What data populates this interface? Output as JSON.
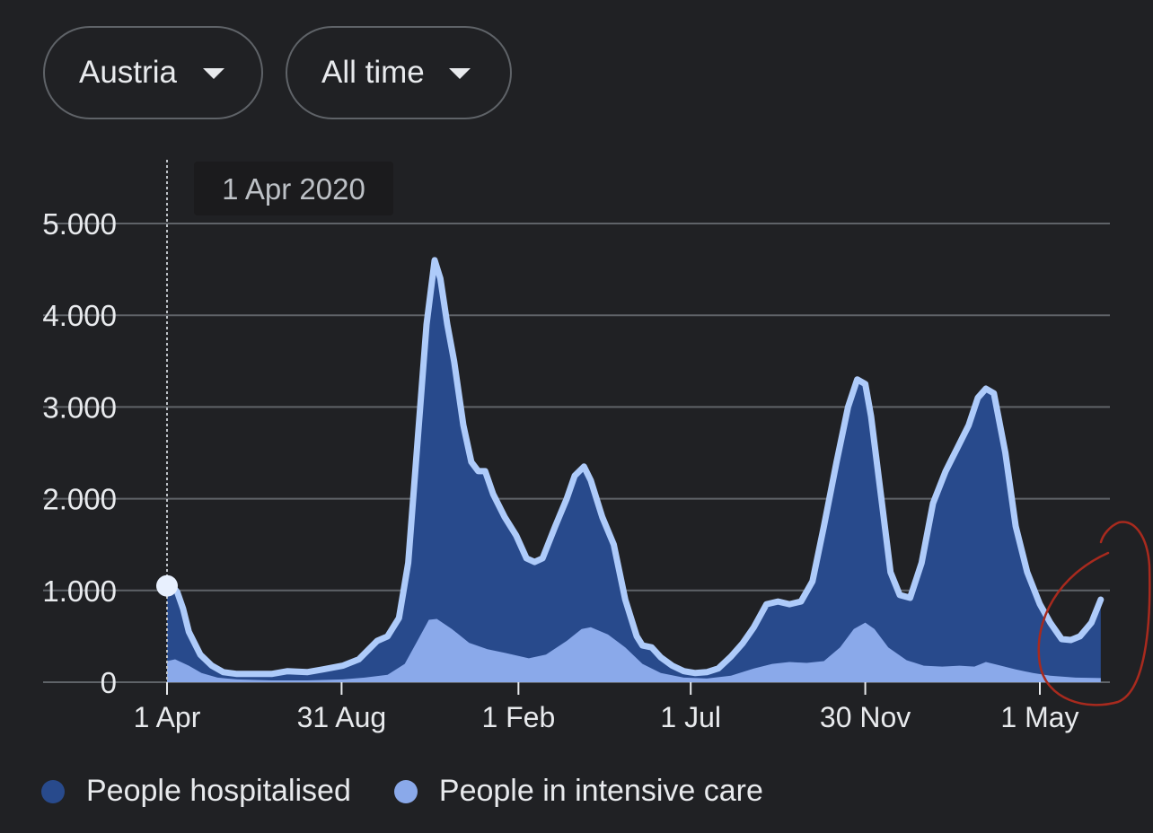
{
  "filters": {
    "region": {
      "label": "Austria"
    },
    "time_range": {
      "label": "All time"
    }
  },
  "tooltip": {
    "date": "1 Apr 2020"
  },
  "legend": [
    {
      "label": "People hospitalised",
      "color": "#284a8c"
    },
    {
      "label": "People in intensive care",
      "color": "#8aa9ea"
    }
  ],
  "colors": {
    "background": "#202124",
    "hospitalised_fill": "#284a8c",
    "hospitalised_line": "#aecbfa",
    "icu_fill": "#8aa9ea",
    "grid": "#5f6368",
    "annotation": "#a82a1e"
  },
  "chart_data": {
    "type": "area",
    "ylim": [
      0,
      5000
    ],
    "y_ticks": [
      0,
      1000,
      2000,
      3000,
      4000,
      5000
    ],
    "y_tick_labels": [
      "0",
      "1.000",
      "2.000",
      "3.000",
      "4.000",
      "5.000"
    ],
    "x_ticks": [
      {
        "date": "2020-04-01",
        "label": "1 Apr"
      },
      {
        "date": "2020-08-31",
        "label": "31 Aug"
      },
      {
        "date": "2021-02-01",
        "label": "1 Feb"
      },
      {
        "date": "2021-07-01",
        "label": "1 Jul"
      },
      {
        "date": "2021-11-30",
        "label": "30 Nov"
      },
      {
        "date": "2022-05-01",
        "label": "1 May"
      }
    ],
    "xlim": [
      "2020-04-01",
      "2022-07-01"
    ],
    "highlighted_date": "2020-04-01",
    "series": [
      {
        "name": "People hospitalised",
        "points": [
          [
            "2020-04-01",
            1050
          ],
          [
            "2020-04-05",
            1060
          ],
          [
            "2020-04-10",
            980
          ],
          [
            "2020-04-15",
            800
          ],
          [
            "2020-04-20",
            550
          ],
          [
            "2020-04-30",
            300
          ],
          [
            "2020-05-10",
            180
          ],
          [
            "2020-05-20",
            110
          ],
          [
            "2020-06-01",
            90
          ],
          [
            "2020-06-15",
            90
          ],
          [
            "2020-07-01",
            90
          ],
          [
            "2020-07-15",
            120
          ],
          [
            "2020-08-01",
            110
          ],
          [
            "2020-08-15",
            140
          ],
          [
            "2020-09-01",
            180
          ],
          [
            "2020-09-15",
            250
          ],
          [
            "2020-10-01",
            450
          ],
          [
            "2020-10-10",
            500
          ],
          [
            "2020-10-20",
            700
          ],
          [
            "2020-10-28",
            1300
          ],
          [
            "2020-11-05",
            2600
          ],
          [
            "2020-11-13",
            3900
          ],
          [
            "2020-11-20",
            4600
          ],
          [
            "2020-11-25",
            4400
          ],
          [
            "2020-12-01",
            3900
          ],
          [
            "2020-12-07",
            3500
          ],
          [
            "2020-12-15",
            2800
          ],
          [
            "2020-12-22",
            2400
          ],
          [
            "2020-12-28",
            2300
          ],
          [
            "2021-01-03",
            2300
          ],
          [
            "2021-01-10",
            2050
          ],
          [
            "2021-01-20",
            1800
          ],
          [
            "2021-01-30",
            1600
          ],
          [
            "2021-02-08",
            1350
          ],
          [
            "2021-02-15",
            1310
          ],
          [
            "2021-02-22",
            1350
          ],
          [
            "2021-03-05",
            1700
          ],
          [
            "2021-03-15",
            2000
          ],
          [
            "2021-03-22",
            2250
          ],
          [
            "2021-03-30",
            2350
          ],
          [
            "2021-04-05",
            2200
          ],
          [
            "2021-04-15",
            1800
          ],
          [
            "2021-04-25",
            1500
          ],
          [
            "2021-05-05",
            900
          ],
          [
            "2021-05-15",
            500
          ],
          [
            "2021-05-20",
            400
          ],
          [
            "2021-05-28",
            380
          ],
          [
            "2021-06-05",
            270
          ],
          [
            "2021-06-15",
            180
          ],
          [
            "2021-06-25",
            120
          ],
          [
            "2021-07-05",
            100
          ],
          [
            "2021-07-15",
            110
          ],
          [
            "2021-07-25",
            150
          ],
          [
            "2021-08-05",
            280
          ],
          [
            "2021-08-15",
            420
          ],
          [
            "2021-08-25",
            600
          ],
          [
            "2021-09-05",
            850
          ],
          [
            "2021-09-15",
            880
          ],
          [
            "2021-09-25",
            850
          ],
          [
            "2021-10-05",
            880
          ],
          [
            "2021-10-15",
            1100
          ],
          [
            "2021-10-25",
            1700
          ],
          [
            "2021-11-05",
            2400
          ],
          [
            "2021-11-15",
            3000
          ],
          [
            "2021-11-23",
            3300
          ],
          [
            "2021-11-30",
            3250
          ],
          [
            "2021-12-05",
            2900
          ],
          [
            "2021-12-15",
            1900
          ],
          [
            "2021-12-22",
            1200
          ],
          [
            "2021-12-30",
            950
          ],
          [
            "2022-01-08",
            920
          ],
          [
            "2022-01-18",
            1300
          ],
          [
            "2022-01-28",
            1950
          ],
          [
            "2022-02-08",
            2300
          ],
          [
            "2022-02-18",
            2550
          ],
          [
            "2022-02-28",
            2800
          ],
          [
            "2022-03-08",
            3100
          ],
          [
            "2022-03-15",
            3200
          ],
          [
            "2022-03-22",
            3150
          ],
          [
            "2022-04-01",
            2500
          ],
          [
            "2022-04-10",
            1700
          ],
          [
            "2022-04-20",
            1200
          ],
          [
            "2022-05-01",
            850
          ],
          [
            "2022-05-10",
            650
          ],
          [
            "2022-05-20",
            470
          ],
          [
            "2022-05-28",
            460
          ],
          [
            "2022-06-05",
            500
          ],
          [
            "2022-06-15",
            650
          ],
          [
            "2022-06-23",
            900
          ]
        ]
      },
      {
        "name": "People in intensive care",
        "points": [
          [
            "2020-04-01",
            230
          ],
          [
            "2020-04-08",
            250
          ],
          [
            "2020-04-20",
            180
          ],
          [
            "2020-05-01",
            100
          ],
          [
            "2020-05-15",
            50
          ],
          [
            "2020-06-01",
            30
          ],
          [
            "2020-07-01",
            20
          ],
          [
            "2020-08-01",
            20
          ],
          [
            "2020-09-01",
            30
          ],
          [
            "2020-09-20",
            50
          ],
          [
            "2020-10-10",
            80
          ],
          [
            "2020-10-25",
            200
          ],
          [
            "2020-11-05",
            450
          ],
          [
            "2020-11-15",
            680
          ],
          [
            "2020-11-22",
            690
          ],
          [
            "2020-12-05",
            580
          ],
          [
            "2020-12-20",
            430
          ],
          [
            "2021-01-05",
            360
          ],
          [
            "2021-01-20",
            320
          ],
          [
            "2021-02-10",
            260
          ],
          [
            "2021-02-25",
            300
          ],
          [
            "2021-03-15",
            450
          ],
          [
            "2021-03-28",
            580
          ],
          [
            "2021-04-05",
            600
          ],
          [
            "2021-04-20",
            520
          ],
          [
            "2021-05-05",
            380
          ],
          [
            "2021-05-20",
            200
          ],
          [
            "2021-06-05",
            100
          ],
          [
            "2021-06-25",
            50
          ],
          [
            "2021-07-15",
            40
          ],
          [
            "2021-08-05",
            70
          ],
          [
            "2021-08-25",
            150
          ],
          [
            "2021-09-10",
            200
          ],
          [
            "2021-09-25",
            220
          ],
          [
            "2021-10-10",
            210
          ],
          [
            "2021-10-25",
            230
          ],
          [
            "2021-11-08",
            380
          ],
          [
            "2021-11-20",
            580
          ],
          [
            "2021-11-30",
            650
          ],
          [
            "2021-12-08",
            580
          ],
          [
            "2021-12-20",
            380
          ],
          [
            "2022-01-05",
            240
          ],
          [
            "2022-01-20",
            180
          ],
          [
            "2022-02-05",
            170
          ],
          [
            "2022-02-20",
            180
          ],
          [
            "2022-03-05",
            170
          ],
          [
            "2022-03-15",
            220
          ],
          [
            "2022-03-25",
            190
          ],
          [
            "2022-04-10",
            140
          ],
          [
            "2022-04-25",
            100
          ],
          [
            "2022-05-10",
            70
          ],
          [
            "2022-06-01",
            50
          ],
          [
            "2022-06-23",
            45
          ]
        ]
      }
    ]
  }
}
